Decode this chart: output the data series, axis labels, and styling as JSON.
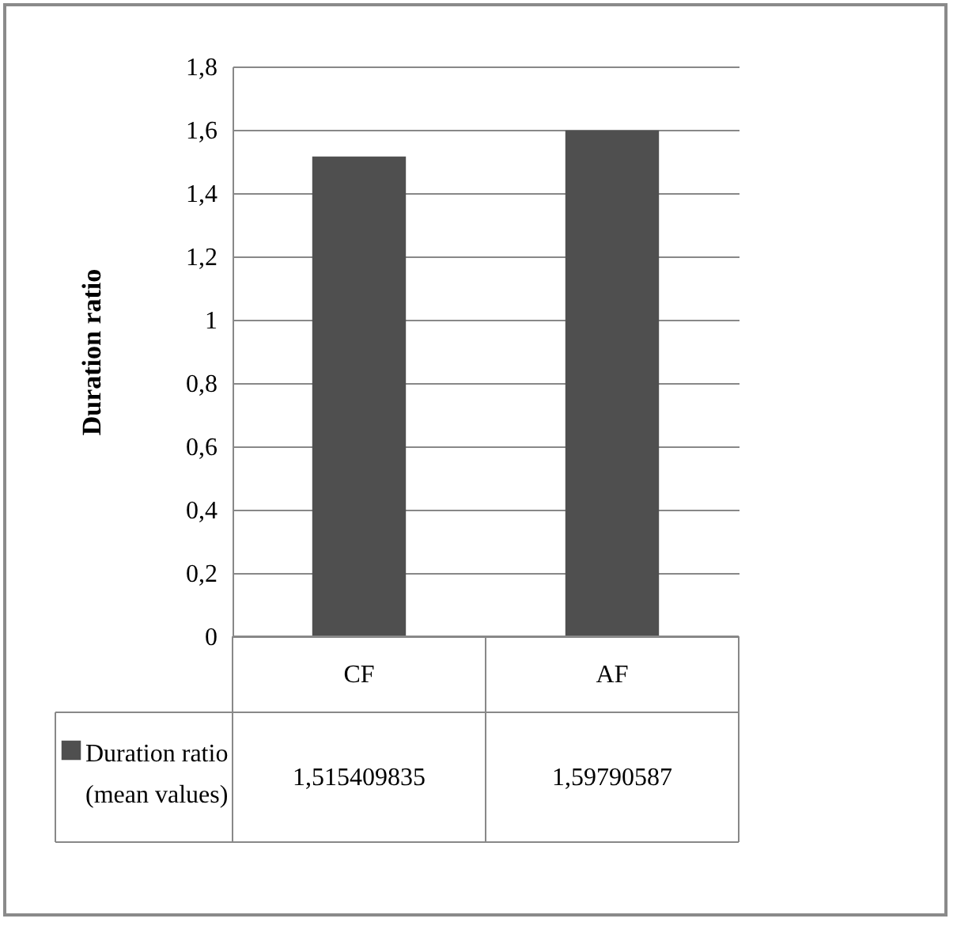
{
  "chart_data": {
    "type": "bar",
    "ylabel": "Duration ratio",
    "categories": [
      "CF",
      "AF"
    ],
    "series": [
      {
        "name": "Duration ratio (mean values)",
        "color": "#4f4f4f",
        "values": [
          1.515409835,
          1.59790587
        ],
        "value_labels": [
          "1,515409835",
          "1,59790587"
        ]
      }
    ],
    "ylim": [
      0,
      1.8
    ],
    "yticks": [
      0,
      {
        "value": 0.2,
        "label": "0,2"
      },
      {
        "value": 0.4,
        "label": "0,4"
      },
      {
        "value": 0.6,
        "label": "0,6"
      },
      {
        "value": 0.8,
        "label": "0,8"
      },
      1,
      {
        "value": 1.2,
        "label": "1,2"
      },
      {
        "value": 1.4,
        "label": "1,4"
      },
      {
        "value": 1.6,
        "label": "1,6"
      },
      {
        "value": 1.8,
        "label": "1,8"
      }
    ],
    "grid": "y",
    "legend": "bottom left"
  }
}
